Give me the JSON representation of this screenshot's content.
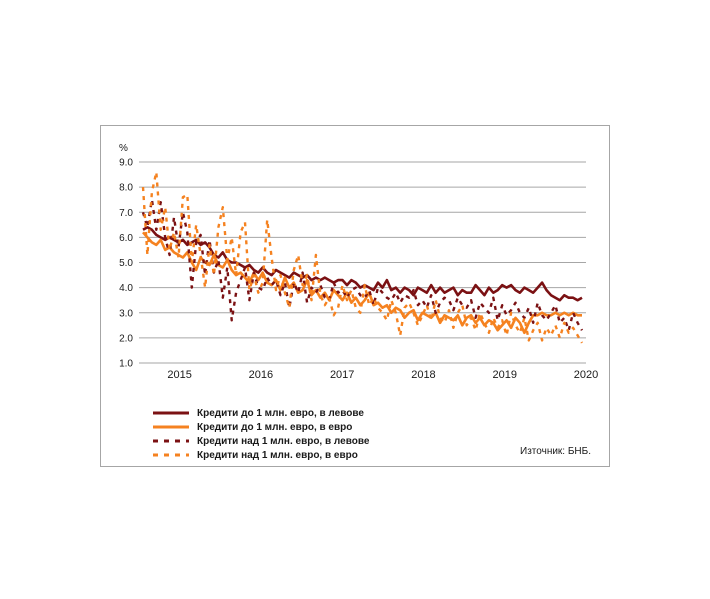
{
  "chart_data": {
    "type": "line",
    "ylabel": "%",
    "ylim": [
      1.0,
      9.0
    ],
    "yticks": [
      "1.0",
      "2.0",
      "3.0",
      "4.0",
      "5.0",
      "6.0",
      "7.0",
      "8.0",
      "9.0"
    ],
    "xticks": [
      "2015",
      "2016",
      "2017",
      "2018",
      "2019",
      "2020"
    ],
    "grid": true,
    "legend_position": "bottom-left",
    "source": "Източник: БНБ.",
    "x_start": "2014-07",
    "x_end": "2019-12",
    "series": [
      {
        "name": "Кредити до 1 млн. евро, в левове",
        "color": "#7b1113",
        "dash": "solid",
        "values": [
          6.3,
          6.4,
          6.3,
          6.1,
          6.0,
          5.9,
          6.0,
          5.9,
          5.8,
          5.9,
          5.7,
          5.8,
          5.9,
          5.7,
          5.8,
          5.6,
          5.3,
          5.2,
          5.4,
          5.1,
          5.0,
          5.0,
          4.9,
          4.8,
          4.9,
          4.7,
          4.6,
          4.8,
          4.6,
          4.5,
          4.7,
          4.6,
          4.5,
          4.4,
          4.6,
          4.5,
          4.4,
          4.5,
          4.3,
          4.4,
          4.3,
          4.4,
          4.3,
          4.2,
          4.3,
          4.3,
          4.1,
          4.3,
          4.2,
          4.0,
          4.1,
          4.0,
          3.9,
          4.2,
          4.0,
          4.3,
          3.9,
          4.0,
          3.8,
          4.0,
          3.9,
          3.7,
          4.0,
          3.9,
          3.8,
          4.1,
          3.8,
          4.0,
          3.8,
          3.9,
          4.0,
          3.7,
          3.9,
          3.8,
          3.8,
          4.1,
          3.9,
          3.7,
          4.0,
          3.8,
          3.9,
          4.1,
          4.0,
          4.1,
          3.9,
          3.8,
          4.0,
          3.9,
          3.8,
          4.0,
          4.2,
          3.9,
          3.7,
          3.6,
          3.5,
          3.7,
          3.6,
          3.6,
          3.5,
          3.6
        ]
      },
      {
        "name": "Кредити до 1 млн. евро, в евро",
        "color": "#f58220",
        "dash": "solid",
        "values": [
          6.2,
          6.0,
          5.8,
          5.7,
          5.9,
          5.5,
          5.6,
          5.4,
          5.3,
          5.2,
          5.4,
          5.0,
          4.7,
          5.2,
          5.0,
          4.9,
          5.3,
          4.9,
          4.8,
          5.1,
          4.7,
          4.5,
          4.6,
          4.4,
          4.2,
          4.6,
          4.3,
          4.6,
          4.2,
          4.1,
          4.3,
          3.9,
          4.4,
          4.0,
          4.2,
          3.8,
          3.9,
          4.3,
          3.7,
          3.9,
          3.6,
          3.8,
          3.5,
          3.9,
          3.7,
          3.5,
          3.8,
          3.4,
          3.6,
          3.3,
          3.5,
          3.8,
          3.3,
          3.4,
          3.2,
          3.3,
          3.0,
          3.2,
          3.1,
          2.8,
          3.0,
          3.1,
          2.7,
          3.0,
          2.9,
          2.8,
          3.0,
          2.6,
          2.9,
          2.8,
          2.7,
          2.9,
          2.5,
          2.8,
          2.9,
          2.6,
          2.8,
          2.5,
          2.7,
          2.6,
          2.3,
          2.5,
          2.7,
          2.4,
          2.8,
          2.6,
          2.2,
          2.6,
          2.9,
          2.9,
          3.0,
          2.9,
          2.9,
          3.0,
          2.9,
          3.0,
          2.9,
          3.0,
          2.9,
          2.9
        ]
      },
      {
        "name": "Кредити над 1 млн. евро, в левове",
        "color": "#7b1113",
        "dash": "dashed",
        "values": [
          7.0,
          6.4,
          7.5,
          6.3,
          7.4,
          6.0,
          5.3,
          6.8,
          5.6,
          7.0,
          6.2,
          4.0,
          5.8,
          6.1,
          4.5,
          5.9,
          4.6,
          5.1,
          3.6,
          4.8,
          2.7,
          3.8,
          4.3,
          4.8,
          3.5,
          4.6,
          4.0,
          3.9,
          4.4,
          4.1,
          4.3,
          3.7,
          4.2,
          3.2,
          4.2,
          3.8,
          4.6,
          3.4,
          4.0,
          3.8,
          4.1,
          3.6,
          3.5,
          4.2,
          3.8,
          3.9,
          3.6,
          3.9,
          4.0,
          3.7,
          3.6,
          3.9,
          3.3,
          4.0,
          3.8,
          3.6,
          3.5,
          3.8,
          3.4,
          3.7,
          3.6,
          3.9,
          3.3,
          3.5,
          3.2,
          3.7,
          3.0,
          3.4,
          3.6,
          3.5,
          3.1,
          3.6,
          3.3,
          3.2,
          3.5,
          2.8,
          3.4,
          3.2,
          3.0,
          3.6,
          2.7,
          3.3,
          2.9,
          3.1,
          3.4,
          3.0,
          2.8,
          3.2,
          2.6,
          3.4,
          2.9,
          2.7,
          3.0,
          3.3,
          2.6,
          2.8,
          2.3,
          3.0,
          2.6,
          2.3
        ]
      },
      {
        "name": "Кредити над 1 млн. евро, в евро",
        "color": "#f58220",
        "dash": "dashed",
        "values": [
          8.0,
          5.3,
          7.8,
          8.6,
          6.3,
          7.2,
          5.5,
          6.2,
          5.2,
          7.6,
          7.7,
          5.0,
          6.5,
          5.3,
          4.0,
          5.7,
          4.5,
          6.4,
          7.2,
          5.1,
          6.0,
          4.5,
          6.2,
          6.6,
          3.9,
          4.5,
          3.8,
          4.2,
          6.7,
          5.2,
          3.9,
          4.5,
          3.8,
          3.2,
          4.7,
          5.3,
          4.1,
          4.5,
          3.5,
          5.3,
          3.7,
          3.3,
          3.6,
          2.9,
          3.2,
          4.1,
          3.5,
          3.9,
          3.2,
          3.0,
          4.1,
          3.3,
          3.6,
          3.2,
          3.0,
          2.7,
          3.5,
          3.0,
          2.1,
          3.2,
          3.4,
          3.0,
          2.5,
          2.9,
          3.3,
          2.7,
          3.5,
          2.8,
          2.6,
          3.1,
          2.4,
          3.0,
          3.3,
          2.5,
          2.8,
          2.3,
          3.0,
          2.6,
          2.2,
          2.8,
          2.4,
          2.7,
          2.1,
          3.0,
          2.5,
          2.2,
          2.8,
          1.9,
          2.3,
          2.6,
          1.9,
          2.4,
          2.1,
          2.5,
          2.0,
          2.6,
          2.2,
          2.4,
          2.1,
          1.8
        ]
      }
    ]
  }
}
